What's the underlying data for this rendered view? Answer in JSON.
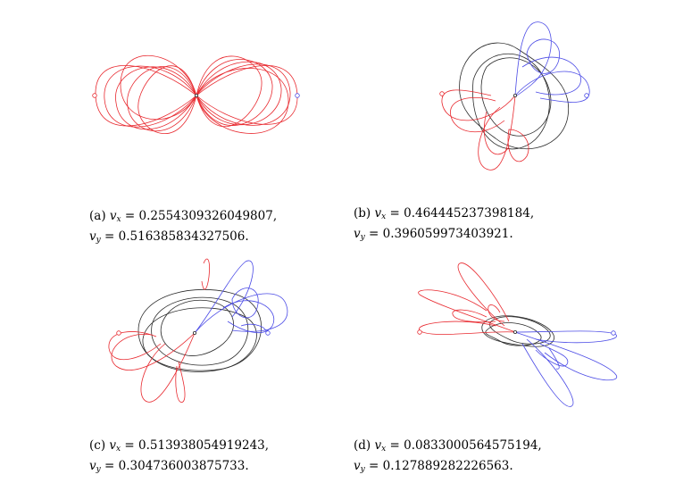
{
  "colors": {
    "red": "#e8292f",
    "blue": "#4b4be6",
    "black": "#2b2b2b"
  },
  "panels": [
    {
      "id": "a",
      "label": "(a)",
      "vx": "0.2554309326049807,",
      "vy": "0.516385834327506."
    },
    {
      "id": "b",
      "label": "(b)",
      "vx": "0.464445237398184,",
      "vy": "0.396059973403921."
    },
    {
      "id": "c",
      "label": "(c)",
      "vx": "0.513938054919243,",
      "vy": "0.304736003875733."
    },
    {
      "id": "d",
      "label": "(d)",
      "vx": "0.0833000564575194,",
      "vy": "0.127889282226563."
    }
  ]
}
